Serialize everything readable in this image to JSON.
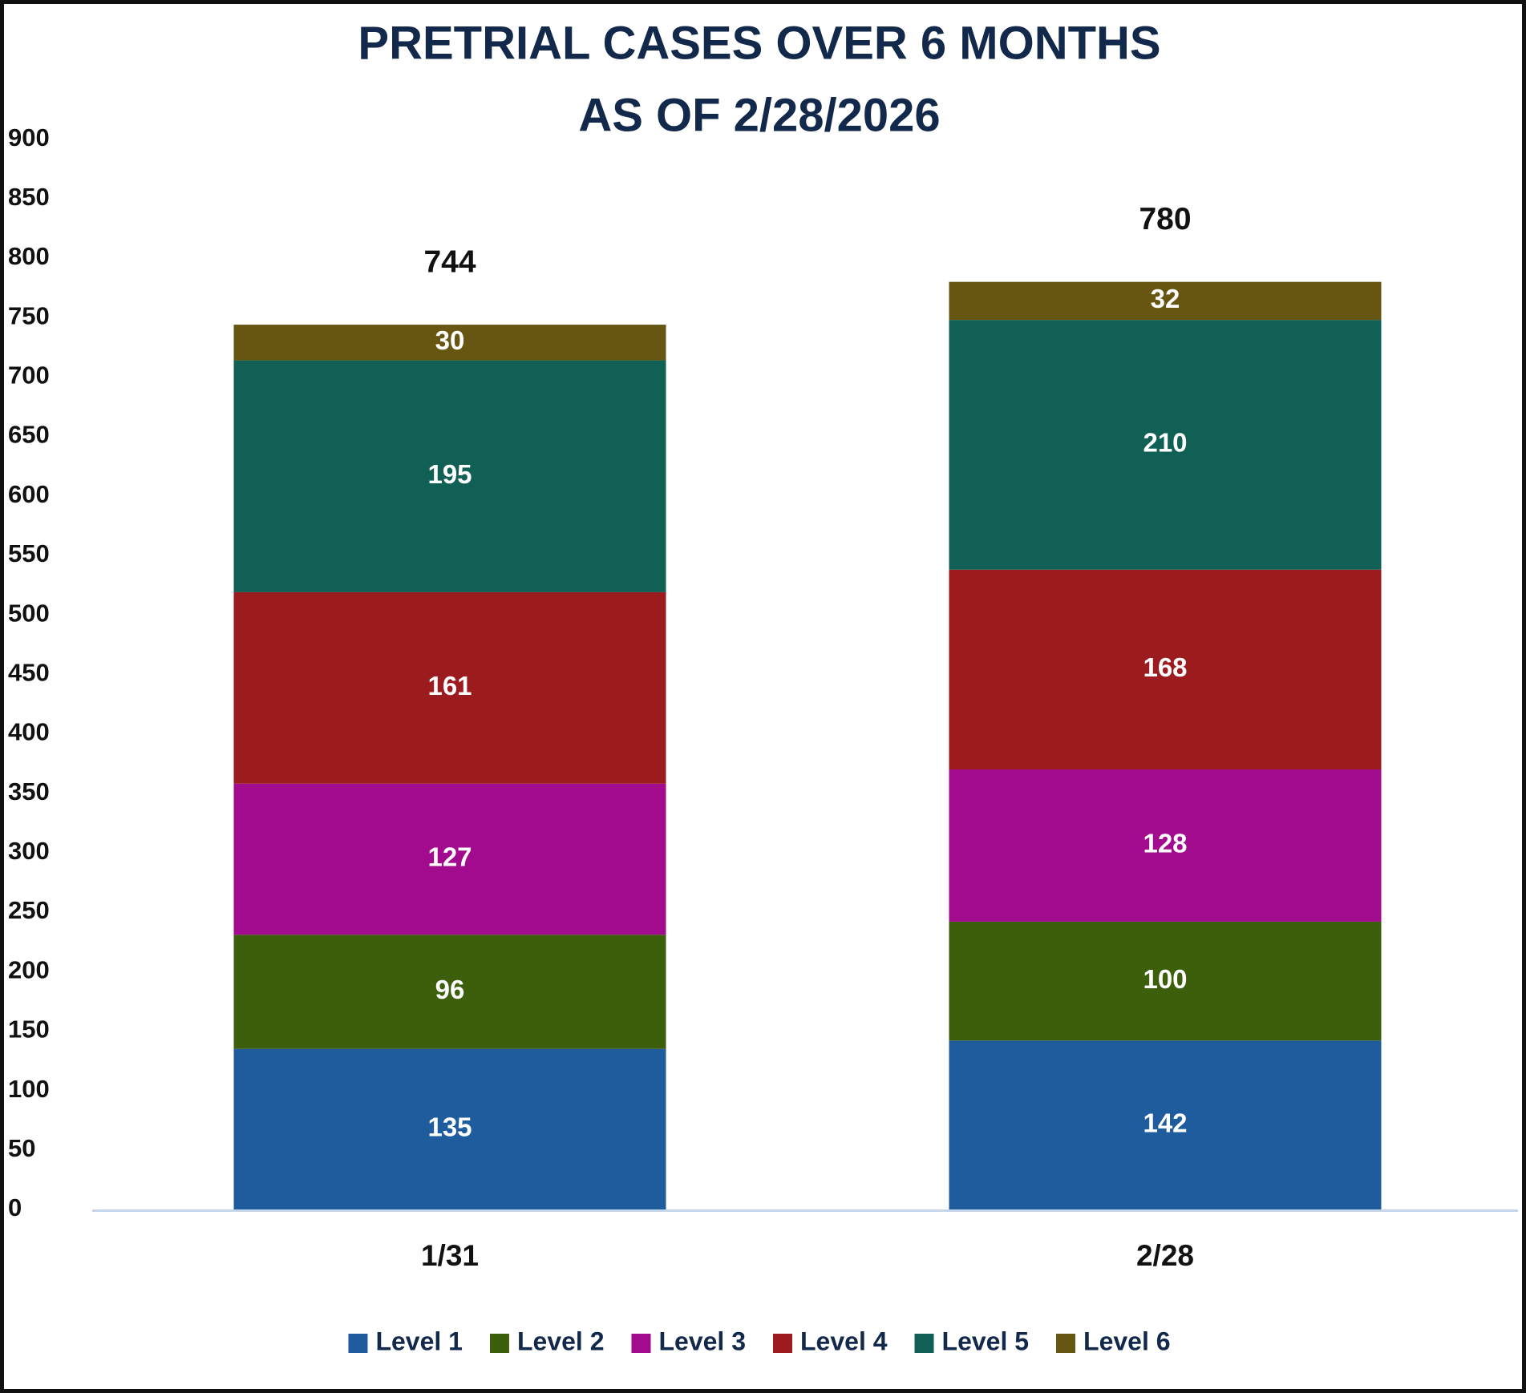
{
  "chart_data": {
    "type": "stacked_bar",
    "title": "PRETRIAL CASES OVER 6 MONTHS",
    "subtitle": "AS OF 2/28/2026",
    "categories": [
      "1/31",
      "2/28"
    ],
    "series": [
      {
        "name": "Level 1",
        "color": "#1f5c9e",
        "values": [
          135,
          142
        ]
      },
      {
        "name": "Level 2",
        "color": "#3d5e0a",
        "values": [
          96,
          100
        ]
      },
      {
        "name": "Level 3",
        "color": "#a30b8f",
        "values": [
          127,
          128
        ]
      },
      {
        "name": "Level 4",
        "color": "#9b1b1e",
        "values": [
          161,
          168
        ]
      },
      {
        "name": "Level 5",
        "color": "#116055",
        "values": [
          195,
          210
        ]
      },
      {
        "name": "Level 6",
        "color": "#665611",
        "values": [
          30,
          32
        ]
      }
    ],
    "totals": [
      744,
      780
    ],
    "ylim": [
      0,
      900
    ],
    "yticks": [
      0,
      50,
      100,
      150,
      200,
      250,
      300,
      350,
      400,
      450,
      500,
      550,
      600,
      650,
      700,
      750,
      800,
      850,
      900
    ],
    "grid": false,
    "legend": "bottom"
  }
}
